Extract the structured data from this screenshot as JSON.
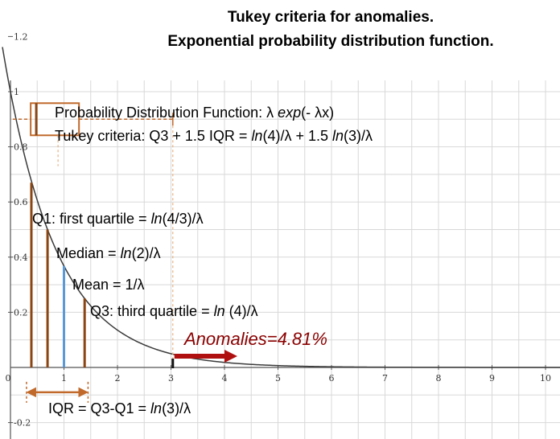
{
  "title": {
    "line1": "Tukey criteria for anomalies.",
    "line2": "Exponential probability distribution function."
  },
  "annotations": {
    "pdf_prefix": "Probability Distribution Function: λ ",
    "pdf_exp": "exp",
    "pdf_suffix": "(- λx)",
    "tukey_prefix": "Tukey criteria:  Q3 + 1.5 IQR = ",
    "tukey_ln1": "ln",
    "tukey_mid": "(4)/λ + 1.5  ",
    "tukey_ln2": "ln",
    "tukey_suffix": "(3)/λ",
    "q1_prefix": "Q1: first quartile = ",
    "q1_ln": "ln",
    "q1_suffix": "(4/3)/λ",
    "median_prefix": "Median = ",
    "median_ln": "ln",
    "median_suffix": "(2)/λ",
    "mean_text": "Mean = 1/λ",
    "q3_prefix": "Q3: third quartile = ",
    "q3_ln": "ln",
    "q3_suffix": " (4)/λ",
    "anomalies": "Anomalies=4.81%",
    "iqr_prefix": "IQR = Q3-Q1 = ",
    "iqr_ln": "ln",
    "iqr_suffix": "(3)/λ"
  },
  "colors": {
    "curve": "#3a3a3a",
    "quartile_lines": "#8b4513",
    "mean_line": "#5b9bd5",
    "boxplot": "#c0692a",
    "anomaly_arrow": "#b01010",
    "grid": "#d8d8d8"
  },
  "chart_data": {
    "type": "line",
    "function": "exp(-x)",
    "lambda": 1,
    "xlim": [
      0,
      10
    ],
    "ylim": [
      -0.2,
      1.2
    ],
    "x_ticks": [
      "0",
      "1",
      "2",
      "3",
      "4",
      "5",
      "6",
      "7",
      "8",
      "9",
      "10"
    ],
    "y_ticks": [
      "-0.2",
      "0",
      "0.2",
      "0.4",
      "0.6",
      "0.8",
      "1",
      "1.2"
    ],
    "grid": true,
    "markers": {
      "q1": 0.2877,
      "median": 0.6931,
      "mean": 1.0,
      "q3": 1.3863,
      "tukey_fence": 3.0342
    },
    "boxplot": {
      "whisker_low": 0,
      "q1": 0.2877,
      "median": 0.6931,
      "q3": 1.3863,
      "whisker_high": 3.0342,
      "y": 0.9
    },
    "anomaly_percent": 4.81
  }
}
